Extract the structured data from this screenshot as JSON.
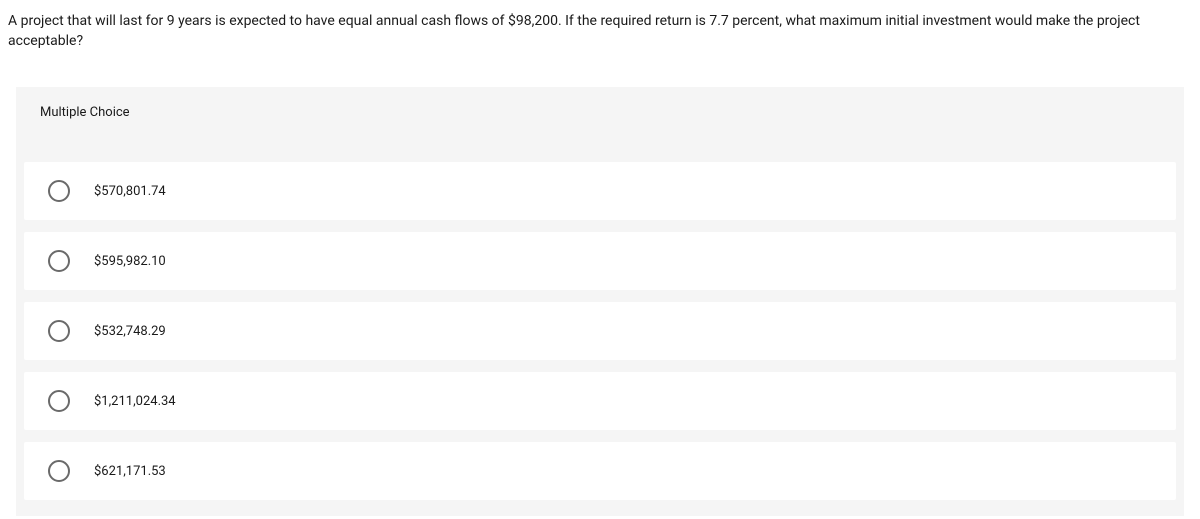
{
  "question": {
    "text": "A project that will last for 9 years is expected to have equal annual cash flows of $98,200. If the required return is 7.7 percent, what maximum initial investment would make the project acceptable?"
  },
  "section_label": "Multiple Choice",
  "options": [
    {
      "label": "$570,801.74"
    },
    {
      "label": "$595,982.10"
    },
    {
      "label": "$532,748.29"
    },
    {
      "label": "$1,211,024.34"
    },
    {
      "label": "$621,171.53"
    }
  ],
  "colors": {
    "page_bg": "#ffffff",
    "panel_bg": "#f5f5f5",
    "option_bg": "#ffffff",
    "text": "#1a1a1a",
    "radio_border": "#6a6a6a"
  }
}
